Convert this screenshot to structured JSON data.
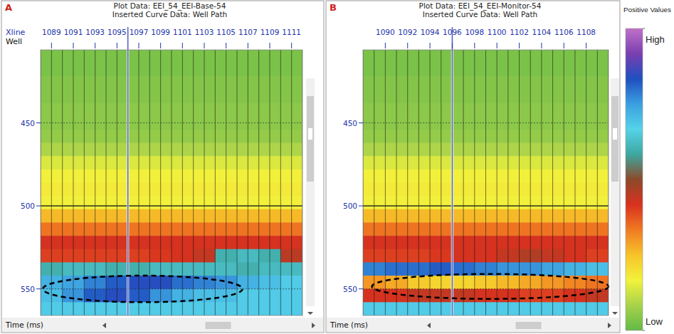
{
  "chart_data": [
    {
      "type": "heatmap",
      "panel": "A",
      "title": "Plot Data: EEI_54_EEI-Base-54",
      "subtitle": "Inserted Curve Data: Well Path",
      "x_label": "Xline",
      "well_label": "Well",
      "y_label": "Time (ms)",
      "xlim": [
        1088,
        1112
      ],
      "ylim": [
        406,
        566
      ],
      "xticks": [
        1089,
        1091,
        1093,
        1095,
        1097,
        1099,
        1101,
        1103,
        1105,
        1107,
        1109,
        1111
      ],
      "yticks": [
        450,
        500,
        550
      ],
      "grid": true,
      "x_edges": [
        1088,
        1090,
        1092,
        1094,
        1096,
        1098,
        1100,
        1102,
        1104,
        1106,
        1108,
        1110,
        1112
      ],
      "y_edges": [
        406,
        414,
        422,
        430,
        438,
        446,
        454,
        462,
        470,
        478,
        486,
        494,
        502,
        510,
        518,
        526,
        534,
        542,
        550,
        558,
        566
      ],
      "cells": [
        [
          3,
          3,
          3,
          3,
          3,
          3,
          3,
          3,
          3,
          3,
          3,
          3
        ],
        [
          3,
          3,
          3,
          3,
          3,
          3,
          3,
          3,
          3,
          3,
          3,
          3
        ],
        [
          4,
          4,
          4,
          4,
          4,
          4,
          4,
          4,
          4,
          4,
          4,
          4
        ],
        [
          4,
          4,
          4,
          4,
          4,
          4,
          4,
          4,
          4,
          4,
          4,
          4
        ],
        [
          5,
          5,
          5,
          5,
          5,
          5,
          5,
          5,
          5,
          5,
          5,
          5
        ],
        [
          5,
          5,
          5,
          5,
          5,
          5,
          5,
          5,
          5,
          5,
          5,
          5
        ],
        [
          6,
          6,
          6,
          6,
          6,
          6,
          6,
          6,
          6,
          6,
          6,
          6
        ],
        [
          9,
          9,
          9,
          9,
          9,
          9,
          9,
          9,
          9,
          9,
          9,
          9
        ],
        [
          14,
          14,
          14,
          14,
          14,
          14,
          14,
          14,
          14,
          14,
          14,
          14
        ],
        [
          17,
          17,
          17,
          17,
          17,
          17,
          17,
          17,
          17,
          17,
          17,
          17
        ],
        [
          18,
          18,
          18,
          18,
          18,
          18,
          18,
          18,
          18,
          18,
          18,
          18
        ],
        [
          17,
          17,
          17,
          17,
          17,
          17,
          17,
          17,
          17,
          17,
          17,
          17
        ],
        [
          26,
          26,
          26,
          26,
          26,
          26,
          26,
          26,
          26,
          26,
          26,
          26
        ],
        [
          34,
          34,
          34,
          34,
          34,
          34,
          34,
          34,
          34,
          34,
          34,
          34
        ],
        [
          42,
          42,
          42,
          42,
          42,
          42,
          42,
          42,
          42,
          42,
          42,
          42
        ],
        [
          40,
          40,
          40,
          40,
          40,
          41,
          42,
          44,
          60,
          62,
          60,
          45
        ],
        [
          60,
          62,
          62,
          60,
          60,
          62,
          62,
          62,
          62,
          60,
          62,
          62
        ],
        [
          72,
          74,
          78,
          82,
          84,
          84,
          80,
          78,
          76,
          72,
          70,
          68
        ],
        [
          70,
          76,
          82,
          84,
          82,
          76,
          72,
          70,
          70,
          68,
          68,
          68
        ],
        [
          68,
          68,
          68,
          68,
          68,
          68,
          68,
          68,
          68,
          68,
          68,
          68
        ]
      ],
      "well_xline": 1096,
      "highlight": {
        "x": [
          1088.2,
          1106.5
        ],
        "y": [
          542,
          558
        ]
      }
    },
    {
      "type": "heatmap",
      "panel": "B",
      "title": "Plot Data: EEI_54_EEI-Monitor-54",
      "subtitle": "Inserted Curve Data: Well Path",
      "y_label": "Time (ms)",
      "xlim": [
        1088,
        1110
      ],
      "ylim": [
        406,
        566
      ],
      "xticks": [
        1090,
        1092,
        1094,
        1096,
        1098,
        1100,
        1102,
        1104,
        1106,
        1108
      ],
      "yticks": [
        450,
        500,
        550
      ],
      "grid": true,
      "x_edges": [
        1088,
        1090,
        1092,
        1094,
        1096,
        1098,
        1100,
        1102,
        1104,
        1106,
        1108,
        1110
      ],
      "y_edges": [
        406,
        414,
        422,
        430,
        438,
        446,
        454,
        462,
        470,
        478,
        486,
        494,
        502,
        510,
        518,
        526,
        534,
        542,
        550,
        558,
        566
      ],
      "cells": [
        [
          3,
          3,
          3,
          3,
          3,
          3,
          3,
          3,
          3,
          3,
          3
        ],
        [
          3,
          3,
          3,
          3,
          3,
          3,
          3,
          3,
          3,
          3,
          3
        ],
        [
          4,
          4,
          4,
          4,
          4,
          4,
          4,
          4,
          4,
          4,
          4
        ],
        [
          4,
          4,
          4,
          4,
          4,
          4,
          4,
          4,
          4,
          4,
          4
        ],
        [
          5,
          5,
          5,
          5,
          5,
          5,
          5,
          5,
          5,
          5,
          5
        ],
        [
          5,
          5,
          5,
          5,
          5,
          5,
          5,
          5,
          5,
          5,
          5
        ],
        [
          6,
          6,
          6,
          6,
          6,
          6,
          6,
          6,
          6,
          6,
          6
        ],
        [
          9,
          9,
          9,
          9,
          9,
          9,
          9,
          9,
          9,
          9,
          9
        ],
        [
          14,
          14,
          14,
          14,
          14,
          14,
          14,
          14,
          14,
          14,
          14
        ],
        [
          17,
          17,
          17,
          17,
          17,
          17,
          17,
          17,
          17,
          17,
          17
        ],
        [
          18,
          18,
          18,
          18,
          18,
          18,
          18,
          18,
          18,
          18,
          18
        ],
        [
          17,
          17,
          17,
          17,
          17,
          17,
          17,
          17,
          17,
          17,
          17
        ],
        [
          26,
          26,
          26,
          26,
          26,
          26,
          26,
          26,
          26,
          26,
          26
        ],
        [
          34,
          34,
          34,
          34,
          34,
          34,
          34,
          34,
          34,
          34,
          34
        ],
        [
          42,
          42,
          42,
          42,
          42,
          42,
          42,
          42,
          42,
          42,
          42
        ],
        [
          40,
          40,
          40,
          41,
          42,
          42,
          44,
          46,
          44,
          42,
          40
        ],
        [
          78,
          80,
          80,
          82,
          80,
          78,
          76,
          76,
          74,
          72,
          70
        ],
        [
          30,
          28,
          24,
          22,
          22,
          24,
          26,
          28,
          30,
          32,
          34
        ],
        [
          42,
          42,
          44,
          44,
          44,
          42,
          42,
          40,
          40,
          42,
          44
        ],
        [
          68,
          68,
          68,
          68,
          68,
          68,
          68,
          68,
          68,
          68,
          68
        ]
      ],
      "well_xline": 1096,
      "highlight": {
        "x": [
          1088.8,
          1110
        ],
        "y": [
          541,
          556
        ]
      }
    }
  ],
  "colorbar": {
    "title": "Positive Values",
    "range": [
      0,
      100
    ],
    "ticks": [
      {
        "value": 100,
        "label": "High"
      },
      {
        "value": 0,
        "label": "Low"
      }
    ],
    "colors": [
      "#62b948",
      "#a8d24a",
      "#f2f23c",
      "#f7c32a",
      "#f07a22",
      "#d8311f",
      "#8c4a2a",
      "#3ea7a0",
      "#55d3e8",
      "#3b9fe0",
      "#1f4fc0",
      "#7a3fb0",
      "#c070c8"
    ]
  }
}
